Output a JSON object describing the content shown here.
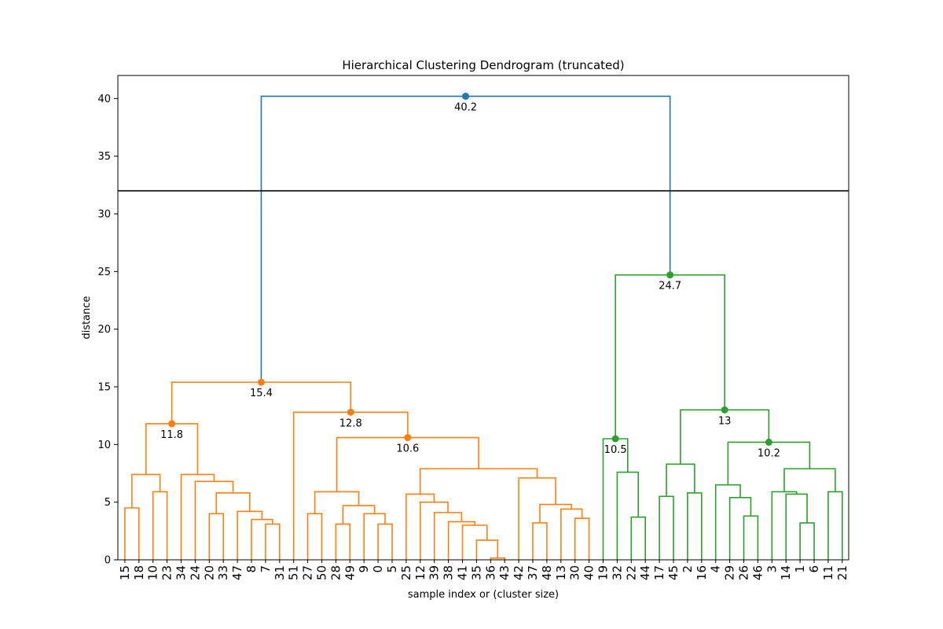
{
  "chart_data": {
    "type": "dendrogram",
    "title": "Hierarchical Clustering Dendrogram (truncated)",
    "xlabel": "sample index or (cluster size)",
    "ylabel": "distance",
    "ylim": [
      0,
      42
    ],
    "yticks": [
      0,
      5,
      10,
      15,
      20,
      25,
      30,
      35,
      40
    ],
    "cut_line": 32,
    "colors": {
      "above": "#1f77b4",
      "cluster1": "#ff7f0e",
      "cluster2": "#2ca02c",
      "cut": "#000000"
    },
    "leaves": [
      "15",
      "18",
      "10",
      "23",
      "34",
      "24",
      "20",
      "33",
      "47",
      "8",
      "7",
      "31",
      "51",
      "27",
      "50",
      "28",
      "49",
      "9",
      "0",
      "5",
      "25",
      "12",
      "39",
      "38",
      "41",
      "35",
      "36",
      "43",
      "42",
      "37",
      "48",
      "13",
      "30",
      "40",
      "19",
      "32",
      "22",
      "44",
      "17",
      "45",
      "2",
      "16",
      "4",
      "29",
      "26",
      "46",
      "3",
      "14",
      "1",
      "6",
      "11",
      "21"
    ],
    "merges": [
      {
        "a": 0,
        "b": 1,
        "h": 4.5,
        "c": "cluster1"
      },
      {
        "a": 2,
        "b": 3,
        "h": 5.9,
        "c": "cluster1"
      },
      {
        "a": "L0",
        "b": "L1",
        "h": 7.4,
        "c": "cluster1"
      },
      {
        "a": 6,
        "b": 7,
        "h": 4.0,
        "c": "cluster1"
      },
      {
        "a": 10,
        "b": 11,
        "h": 3.1,
        "c": "cluster1"
      },
      {
        "a": 9,
        "b": "L4",
        "h": 3.5,
        "c": "cluster1"
      },
      {
        "a": 8,
        "b": "L5",
        "h": 4.2,
        "c": "cluster1"
      },
      {
        "a": "L3",
        "b": "L6",
        "h": 5.8,
        "c": "cluster1"
      },
      {
        "a": 5,
        "b": "L7",
        "h": 6.8,
        "c": "cluster1"
      },
      {
        "a": 4,
        "b": "L8",
        "h": 7.4,
        "c": "cluster1"
      },
      {
        "a": "L2",
        "b": "L9",
        "h": 11.8,
        "c": "cluster1",
        "ann": "11.8"
      },
      {
        "a": 13,
        "b": 14,
        "h": 4.0,
        "c": "cluster1"
      },
      {
        "a": 15,
        "b": 16,
        "h": 3.1,
        "c": "cluster1"
      },
      {
        "a": 18,
        "b": 19,
        "h": 3.1,
        "c": "cluster1"
      },
      {
        "a": 17,
        "b": "L13",
        "h": 4.0,
        "c": "cluster1"
      },
      {
        "a": "L12",
        "b": "L14",
        "h": 4.7,
        "c": "cluster1"
      },
      {
        "a": "L11",
        "b": "L15",
        "h": 5.9,
        "c": "cluster1"
      },
      {
        "a": 26,
        "b": 27,
        "h": 0.15,
        "c": "cluster1"
      },
      {
        "a": 25,
        "b": "L17",
        "h": 1.7,
        "c": "cluster1"
      },
      {
        "a": 24,
        "b": "L18",
        "h": 3.0,
        "c": "cluster1"
      },
      {
        "a": 23,
        "b": "L19",
        "h": 3.3,
        "c": "cluster1"
      },
      {
        "a": 22,
        "b": "L20",
        "h": 4.1,
        "c": "cluster1"
      },
      {
        "a": 21,
        "b": "L21",
        "h": 5.0,
        "c": "cluster1"
      },
      {
        "a": 20,
        "b": "L22",
        "h": 5.7,
        "c": "cluster1"
      },
      {
        "a": 29,
        "b": 30,
        "h": 3.2,
        "c": "cluster1"
      },
      {
        "a": 32,
        "b": 33,
        "h": 3.6,
        "c": "cluster1"
      },
      {
        "a": 31,
        "b": "L25",
        "h": 4.4,
        "c": "cluster1"
      },
      {
        "a": "L24",
        "b": "L26",
        "h": 4.8,
        "c": "cluster1"
      },
      {
        "a": 28,
        "b": "L27",
        "h": 7.1,
        "c": "cluster1"
      },
      {
        "a": "L23",
        "b": "L28",
        "h": 7.9,
        "c": "cluster1"
      },
      {
        "a": "L16",
        "b": "L29",
        "h": 10.6,
        "c": "cluster1",
        "ann": "10.6"
      },
      {
        "a": 12,
        "b": "L30",
        "h": 12.8,
        "c": "cluster1",
        "ann": "12.8"
      },
      {
        "a": "L10",
        "b": "L31",
        "h": 15.4,
        "c": "cluster1",
        "ann": "15.4"
      },
      {
        "a": 36,
        "b": 37,
        "h": 3.7,
        "c": "cluster2"
      },
      {
        "a": 35,
        "b": "L33",
        "h": 7.6,
        "c": "cluster2"
      },
      {
        "a": 34,
        "b": "L34",
        "h": 10.5,
        "c": "cluster2",
        "ann": "10.5"
      },
      {
        "a": 38,
        "b": 39,
        "h": 5.5,
        "c": "cluster2"
      },
      {
        "a": 40,
        "b": 41,
        "h": 5.8,
        "c": "cluster2"
      },
      {
        "a": "L36",
        "b": "L37",
        "h": 8.3,
        "c": "cluster2"
      },
      {
        "a": 44,
        "b": 45,
        "h": 3.8,
        "c": "cluster2"
      },
      {
        "a": 43,
        "b": "L39",
        "h": 5.4,
        "c": "cluster2"
      },
      {
        "a": 42,
        "b": "L40",
        "h": 6.5,
        "c": "cluster2"
      },
      {
        "a": 48,
        "b": 49,
        "h": 3.2,
        "c": "cluster2"
      },
      {
        "a": 47,
        "b": "L42",
        "h": 5.7,
        "c": "cluster2"
      },
      {
        "a": 46,
        "b": "L43",
        "h": 5.9,
        "c": "cluster2"
      },
      {
        "a": 50,
        "b": 51,
        "h": 5.9,
        "c": "cluster2"
      },
      {
        "a": "L44",
        "b": "L45",
        "h": 7.9,
        "c": "cluster2"
      },
      {
        "a": "L41",
        "b": "L46",
        "h": 10.2,
        "c": "cluster2",
        "ann": "10.2"
      },
      {
        "a": "L38",
        "b": "L47",
        "h": 13.0,
        "c": "cluster2",
        "ann": "13"
      },
      {
        "a": "L35",
        "b": "L48",
        "h": 24.7,
        "c": "cluster2",
        "ann": "24.7"
      },
      {
        "a": "L32",
        "b": "L49",
        "h": 40.2,
        "c": "above",
        "ann": "40.2"
      }
    ]
  }
}
